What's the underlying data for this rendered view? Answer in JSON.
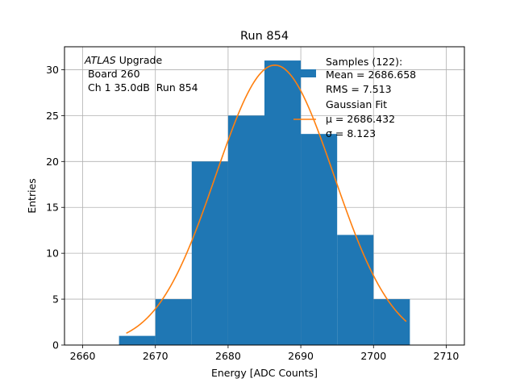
{
  "chart_data": {
    "type": "bar",
    "title": "Run 854",
    "xlabel": "Energy [ADC Counts]",
    "ylabel": "Entries",
    "xlim": [
      2657.5,
      2712.5
    ],
    "ylim": [
      0,
      32.5
    ],
    "xticks": [
      2660,
      2670,
      2680,
      2690,
      2700,
      2710
    ],
    "yticks": [
      0,
      5,
      10,
      15,
      20,
      25,
      30
    ],
    "grid": true,
    "bin_edges": [
      2665,
      2670,
      2675,
      2680,
      2685,
      2690,
      2695,
      2700,
      2705
    ],
    "values": [
      1,
      5,
      20,
      25,
      31,
      23,
      12,
      5
    ],
    "bar_color": "#1f77b4",
    "fit": {
      "type": "gaussian",
      "mu": 2686.432,
      "sigma": 8.123,
      "amplitude": 30.5,
      "x_range": [
        2666,
        2704.5
      ],
      "color": "#ff7f0e"
    },
    "annotation": {
      "line1_italic": "ATLAS",
      "line1_rest": " Upgrade",
      "line2": " Board 260",
      "line3": " Ch 1 35.0dB  Run 854"
    },
    "legend": {
      "placement": "top-right",
      "samples": [
        "Samples (122):",
        "Mean = 2686.658",
        "RMS = 7.513"
      ],
      "fit": [
        "Gaussian Fit",
        "μ = 2686.432",
        "σ = 8.123"
      ]
    }
  }
}
